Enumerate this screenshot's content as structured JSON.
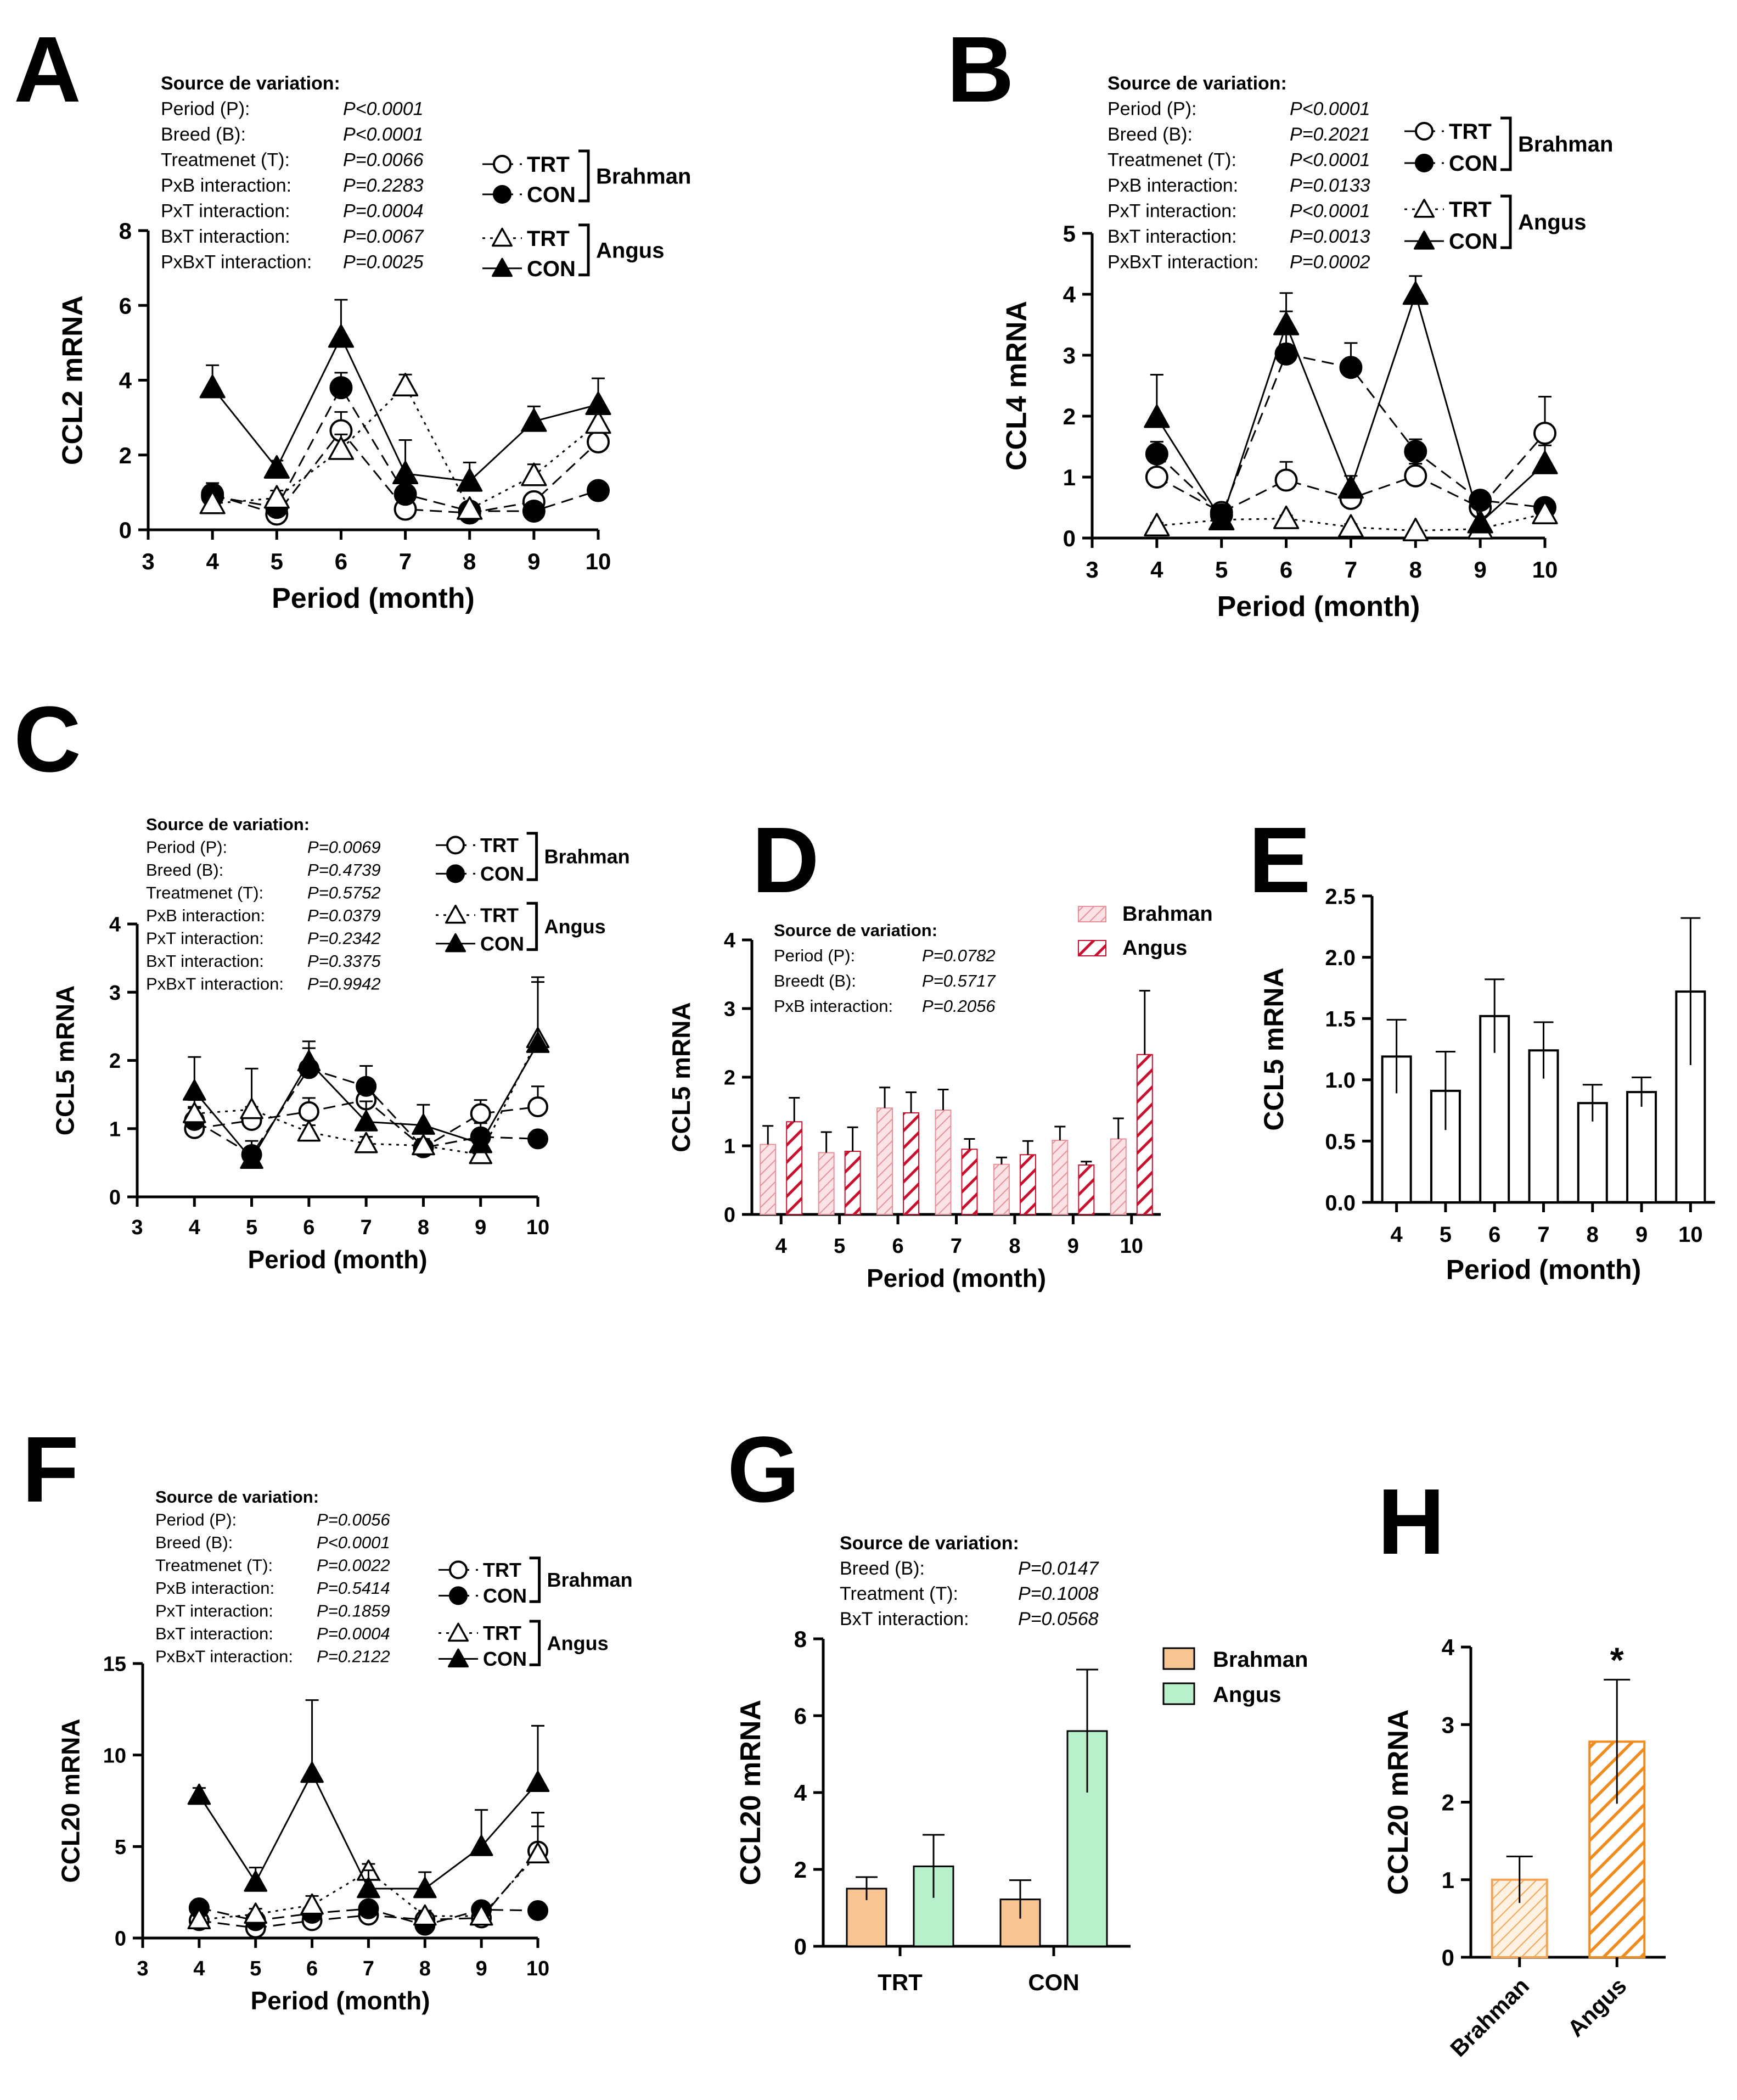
{
  "chart_data": [
    {
      "panel": "A",
      "type": "line",
      "ylabel": "CCL2 mRNA",
      "xlabel": "Period (month)",
      "xlim": [
        3,
        10
      ],
      "xticks": [
        3,
        4,
        5,
        6,
        7,
        8,
        9,
        10
      ],
      "ylim": [
        0,
        8
      ],
      "yticks": [
        0,
        2,
        4,
        6,
        8
      ],
      "stats": {
        "title": "Source de variation:",
        "rows": [
          {
            "label": "Period (P):",
            "value": "P<0.0001"
          },
          {
            "label": "Breed (B):",
            "value": "P<0.0001"
          },
          {
            "label": "Treatmenet (T):",
            "value": "P=0.0066"
          },
          {
            "label": "PxB interaction:",
            "value": "P=0.2283"
          },
          {
            "label": "PxT interaction:",
            "value": "P=0.0004"
          },
          {
            "label": "BxT interaction:",
            "value": "P=0.0067"
          },
          {
            "label": "PxBxT interaction:",
            "value": "P=0.0025"
          }
        ]
      },
      "legend": {
        "groups": [
          {
            "name": "Brahman",
            "items": [
              "TRT",
              "CON"
            ]
          },
          {
            "name": "Angus",
            "items": [
              "TRT",
              "CON"
            ]
          }
        ]
      },
      "series": [
        {
          "name": "Brahman TRT",
          "marker": "circle-open",
          "line": "dashed",
          "x": [
            4,
            5,
            6,
            7,
            8,
            9,
            10
          ],
          "y": [
            0.95,
            0.42,
            2.65,
            0.55,
            0.45,
            0.75,
            2.35
          ],
          "err": [
            0.3,
            0.2,
            0.5,
            0.2,
            0.1,
            0.2,
            0.35
          ]
        },
        {
          "name": "Brahman CON",
          "marker": "circle-filled",
          "line": "dashed",
          "x": [
            4,
            5,
            6,
            7,
            8,
            9,
            10
          ],
          "y": [
            0.9,
            0.6,
            3.8,
            0.95,
            0.5,
            0.5,
            1.05
          ],
          "err": [
            0.2,
            0.2,
            0.4,
            0.2,
            0.1,
            0.1,
            0.1
          ]
        },
        {
          "name": "Angus TRT",
          "marker": "triangle-open",
          "line": "dotted",
          "x": [
            4,
            5,
            6,
            7,
            8,
            9,
            10
          ],
          "y": [
            0.7,
            0.85,
            2.15,
            3.85,
            0.55,
            1.45,
            2.85
          ],
          "err": [
            0.2,
            0.2,
            0.4,
            0.3,
            0.1,
            0.3,
            0.4
          ]
        },
        {
          "name": "Angus CON",
          "marker": "triangle-filled",
          "line": "solid",
          "x": [
            4,
            5,
            6,
            7,
            8,
            9,
            10
          ],
          "y": [
            3.8,
            1.65,
            5.15,
            1.5,
            1.3,
            2.9,
            3.35
          ],
          "err": [
            0.6,
            0.2,
            1.0,
            0.9,
            0.5,
            0.4,
            0.7
          ]
        }
      ]
    },
    {
      "panel": "B",
      "type": "line",
      "ylabel": "CCL4 mRNA",
      "xlabel": "Period (month)",
      "xlim": [
        3,
        10
      ],
      "xticks": [
        3,
        4,
        5,
        6,
        7,
        8,
        9,
        10
      ],
      "ylim": [
        0,
        5
      ],
      "yticks": [
        0,
        1,
        2,
        3,
        4,
        5
      ],
      "stats": {
        "title": "Source de variation:",
        "rows": [
          {
            "label": "Period (P):",
            "value": "P<0.0001"
          },
          {
            "label": "Breed (B):",
            "value": "P=0.2021"
          },
          {
            "label": "Treatmenet (T):",
            "value": "P<0.0001"
          },
          {
            "label": "PxB interaction:",
            "value": "P=0.0133"
          },
          {
            "label": "PxT interaction:",
            "value": "P<0.0001"
          },
          {
            "label": "BxT interaction:",
            "value": "P=0.0013"
          },
          {
            "label": "PxBxT interaction:",
            "value": "P=0.0002"
          }
        ]
      },
      "legend": {
        "groups": [
          {
            "name": "Brahman",
            "items": [
              "TRT",
              "CON"
            ]
          },
          {
            "name": "Angus",
            "items": [
              "TRT",
              "CON"
            ]
          }
        ]
      },
      "series": [
        {
          "name": "Brahman TRT",
          "marker": "circle-open",
          "line": "dashed",
          "x": [
            4,
            5,
            6,
            7,
            8,
            9,
            10
          ],
          "y": [
            1.0,
            0.42,
            0.95,
            0.65,
            1.02,
            0.5,
            1.72
          ],
          "err": [
            0.3,
            0.1,
            0.3,
            0.2,
            0.2,
            0.1,
            0.6
          ]
        },
        {
          "name": "Brahman CON",
          "marker": "circle-filled",
          "line": "dashed",
          "x": [
            4,
            5,
            6,
            7,
            8,
            9,
            10
          ],
          "y": [
            1.38,
            0.38,
            3.02,
            2.8,
            1.42,
            0.62,
            0.5
          ],
          "err": [
            0.2,
            0.1,
            1.0,
            0.4,
            0.2,
            0.1,
            0.1
          ]
        },
        {
          "name": "Angus TRT",
          "marker": "triangle-open",
          "line": "dotted",
          "x": [
            4,
            5,
            6,
            7,
            8,
            9,
            10
          ],
          "y": [
            0.2,
            0.3,
            0.32,
            0.18,
            0.12,
            0.15,
            0.4
          ],
          "err": [
            0.05,
            0.05,
            0.05,
            0.05,
            0.03,
            0.03,
            0.05
          ]
        },
        {
          "name": "Angus CON",
          "marker": "triangle-filled",
          "line": "solid",
          "x": [
            4,
            5,
            6,
            7,
            8,
            9,
            10
          ],
          "y": [
            1.98,
            0.3,
            3.5,
            0.82,
            4.0,
            0.25,
            1.22
          ],
          "err": [
            0.7,
            0.1,
            0.22,
            0.2,
            0.3,
            0.1,
            0.3
          ]
        }
      ]
    },
    {
      "panel": "C",
      "type": "line",
      "ylabel": "CCL5 mRNA",
      "xlabel": "Period (month)",
      "xlim": [
        3,
        10
      ],
      "xticks": [
        3,
        4,
        5,
        6,
        7,
        8,
        9,
        10
      ],
      "ylim": [
        0,
        4
      ],
      "yticks": [
        0,
        1,
        2,
        3,
        4
      ],
      "stats": {
        "title": "Source de variation:",
        "rows": [
          {
            "label": "Period (P):",
            "value": "P=0.0069"
          },
          {
            "label": "Breed (B):",
            "value": "P=0.4739"
          },
          {
            "label": "Treatmenet (T):",
            "value": "P=0.5752"
          },
          {
            "label": "PxB interaction:",
            "value": "P=0.0379"
          },
          {
            "label": "PxT interaction:",
            "value": "P=0.2342"
          },
          {
            "label": "BxT interaction:",
            "value": "P=0.3375"
          },
          {
            "label": "PxBxT interaction:",
            "value": "P=0.9942"
          }
        ]
      },
      "legend": {
        "groups": [
          {
            "name": "Brahman",
            "items": [
              "TRT",
              "CON"
            ]
          },
          {
            "name": "Angus",
            "items": [
              "TRT",
              "CON"
            ]
          }
        ]
      },
      "series": [
        {
          "name": "Brahman TRT",
          "marker": "circle-open",
          "line": "dashed",
          "x": [
            4,
            5,
            6,
            7,
            8,
            9,
            10
          ],
          "y": [
            1.0,
            1.12,
            1.25,
            1.42,
            0.72,
            1.22,
            1.32
          ],
          "err": [
            0.3,
            0.2,
            0.2,
            0.3,
            0.1,
            0.2,
            0.3
          ]
        },
        {
          "name": "Brahman CON",
          "marker": "circle-filled",
          "line": "dashed",
          "x": [
            4,
            5,
            6,
            7,
            8,
            9,
            10
          ],
          "y": [
            1.12,
            0.62,
            1.88,
            1.62,
            0.72,
            0.88,
            0.85
          ],
          "err": [
            0.2,
            0.2,
            0.3,
            0.3,
            0.1,
            0.2,
            0.1
          ]
        },
        {
          "name": "Angus TRT",
          "marker": "triangle-open",
          "line": "dotted",
          "x": [
            4,
            5,
            6,
            7,
            8,
            9,
            10
          ],
          "y": [
            1.22,
            1.28,
            0.95,
            0.78,
            0.75,
            0.62,
            2.32
          ],
          "err": [
            0.2,
            0.6,
            0.1,
            0.1,
            0.1,
            0.1,
            0.9
          ]
        },
        {
          "name": "Angus CON",
          "marker": "triangle-filled",
          "line": "solid",
          "x": [
            4,
            5,
            6,
            7,
            8,
            9,
            10
          ],
          "y": [
            1.55,
            0.55,
            1.98,
            1.1,
            1.05,
            0.78,
            2.25
          ],
          "err": [
            0.5,
            0.1,
            0.3,
            0.3,
            0.3,
            0.2,
            0.9
          ]
        }
      ]
    },
    {
      "panel": "D",
      "type": "bar",
      "ylabel": "CCL5 mRNA",
      "xlabel": "Period (month)",
      "categories": [
        "4",
        "5",
        "6",
        "7",
        "8",
        "9",
        "10"
      ],
      "ylim": [
        0,
        4
      ],
      "yticks": [
        0,
        1,
        2,
        3,
        4
      ],
      "stats": {
        "title": "Source de variation:",
        "rows": [
          {
            "label": "Period (P):",
            "value": "P=0.0782"
          },
          {
            "label": "Breedt (B):",
            "value": "P=0.5717"
          },
          {
            "label": "PxB interaction:",
            "value": "P=0.2056"
          }
        ]
      },
      "series": [
        {
          "name": "Brahman",
          "color": "#f4a0a6",
          "pattern": "fine-hatch",
          "values": [
            1.02,
            0.9,
            1.55,
            1.52,
            0.73,
            1.08,
            1.1
          ],
          "err": [
            0.27,
            0.3,
            0.3,
            0.3,
            0.1,
            0.2,
            0.3
          ]
        },
        {
          "name": "Angus",
          "color": "#c8102e",
          "pattern": "bold-hatch",
          "values": [
            1.35,
            0.92,
            1.48,
            0.95,
            0.87,
            0.72,
            2.33
          ],
          "err": [
            0.35,
            0.35,
            0.3,
            0.15,
            0.2,
            0.05,
            0.93
          ]
        }
      ]
    },
    {
      "panel": "E",
      "type": "bar",
      "ylabel": "CCL5 mRNA",
      "xlabel": "Period (month)",
      "categories": [
        "4",
        "5",
        "6",
        "7",
        "8",
        "9",
        "10"
      ],
      "ylim": [
        0,
        2.5
      ],
      "yticks": [
        "0.0",
        "0.5",
        "1.0",
        "1.5",
        "2.0",
        "2.5"
      ],
      "values": [
        1.19,
        0.91,
        1.52,
        1.24,
        0.81,
        0.9,
        1.72
      ],
      "err": [
        0.3,
        0.32,
        0.3,
        0.23,
        0.15,
        0.12,
        0.6
      ]
    },
    {
      "panel": "F",
      "type": "line",
      "ylabel": "CCL20 mRNA",
      "xlabel": "Period (month)",
      "xlim": [
        3,
        10
      ],
      "xticks": [
        3,
        4,
        5,
        6,
        7,
        8,
        9,
        10
      ],
      "ylim": [
        0,
        15
      ],
      "yticks": [
        0,
        5,
        10,
        15
      ],
      "stats": {
        "title": "Source de variation:",
        "rows": [
          {
            "label": "Period (P):",
            "value": "P=0.0056"
          },
          {
            "label": "Breed (B):",
            "value": "P<0.0001"
          },
          {
            "label": "Treatmenet (T):",
            "value": "P=0.0022"
          },
          {
            "label": "PxB interaction:",
            "value": "P=0.5414"
          },
          {
            "label": "PxT interaction:",
            "value": "P=0.1859"
          },
          {
            "label": "BxT interaction:",
            "value": "P=0.0004"
          },
          {
            "label": "PxBxT interaction:",
            "value": "P=0.2122"
          }
        ]
      },
      "legend": {
        "groups": [
          {
            "name": "Brahman",
            "items": [
              "TRT",
              "CON"
            ]
          },
          {
            "name": "Angus",
            "items": [
              "TRT",
              "CON"
            ]
          }
        ]
      },
      "series": [
        {
          "name": "Brahman TRT",
          "marker": "circle-open",
          "line": "dashed",
          "x": [
            4,
            5,
            6,
            7,
            8,
            9,
            10
          ],
          "y": [
            0.95,
            0.55,
            0.95,
            1.25,
            1.0,
            1.1,
            4.75
          ],
          "err": [
            0.3,
            0.2,
            0.3,
            0.3,
            0.2,
            0.3,
            2.1
          ]
        },
        {
          "name": "Brahman CON",
          "marker": "circle-filled",
          "line": "dashed",
          "x": [
            4,
            5,
            6,
            7,
            8,
            9,
            10
          ],
          "y": [
            1.65,
            0.95,
            1.35,
            1.6,
            0.7,
            1.55,
            1.5
          ],
          "err": [
            0.2,
            0.2,
            0.3,
            0.3,
            0.2,
            0.3,
            0.2
          ]
        },
        {
          "name": "Angus TRT",
          "marker": "triangle-open",
          "line": "dotted",
          "x": [
            4,
            5,
            6,
            7,
            8,
            9,
            10
          ],
          "y": [
            1.0,
            1.3,
            1.8,
            3.65,
            1.2,
            1.2,
            4.6
          ],
          "err": [
            0.2,
            0.3,
            0.5,
            0.4,
            0.3,
            0.3,
            1.5
          ]
        },
        {
          "name": "Angus CON",
          "marker": "triangle-filled",
          "line": "solid",
          "x": [
            4,
            5,
            6,
            7,
            8,
            9,
            10
          ],
          "y": [
            7.8,
            3.05,
            9.0,
            2.7,
            2.7,
            5.0,
            8.5
          ],
          "err": [
            0.4,
            0.8,
            4.0,
            1.0,
            0.9,
            2.0,
            3.1
          ]
        }
      ]
    },
    {
      "panel": "G",
      "type": "bar",
      "ylabel": "CCL20 mRNA",
      "categories": [
        "TRT",
        "CON"
      ],
      "ylim": [
        0,
        8
      ],
      "yticks": [
        0,
        2,
        4,
        6,
        8
      ],
      "stats": {
        "title": "Source de variation:",
        "rows": [
          {
            "label": "Breed (B):",
            "value": "P=0.0147"
          },
          {
            "label": "Treatment (T):",
            "value": "P=0.1008"
          },
          {
            "label": "BxT interaction:",
            "value": "P=0.0568"
          }
        ]
      },
      "series": [
        {
          "name": "Brahman",
          "color": "#f8c491",
          "values": [
            1.5,
            1.22
          ],
          "err": [
            0.3,
            0.5
          ]
        },
        {
          "name": "Angus",
          "color": "#b8f0cc",
          "values": [
            2.08,
            5.6
          ],
          "err": [
            0.82,
            1.6
          ]
        }
      ]
    },
    {
      "panel": "H",
      "type": "bar",
      "ylabel": "CCL20 mRNA",
      "categories": [
        "Brahman",
        "Angus"
      ],
      "ylim": [
        0,
        4
      ],
      "yticks": [
        0,
        1,
        2,
        3,
        4
      ],
      "values": [
        1.0,
        2.78
      ],
      "err": [
        0.3,
        0.8
      ],
      "colors": [
        "#f5a454",
        "#f08c1e"
      ],
      "annotation": "*"
    }
  ]
}
